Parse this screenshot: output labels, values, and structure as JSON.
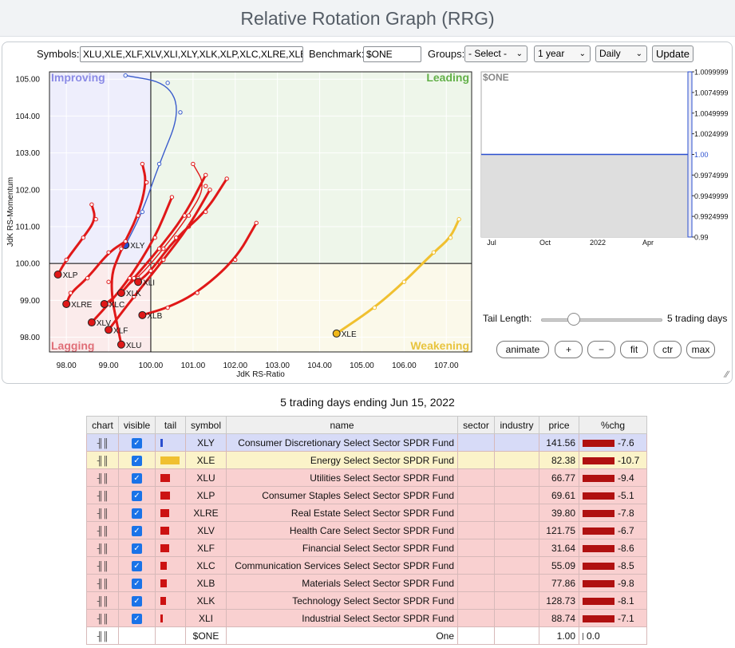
{
  "page_title": "Relative Rotation Graph (RRG)",
  "controls": {
    "symbols_label": "Symbols:",
    "symbols_value": "XLU,XLE,XLF,XLV,XLI,XLY,XLK,XLP,XLC,XLRE,XLB",
    "benchmark_label": "Benchmark:",
    "benchmark_value": "$ONE",
    "groups_label": "Groups:",
    "groups_selected": "- Select -",
    "period_selected": "1 year",
    "frequency_selected": "Daily",
    "update_label": "Update"
  },
  "quadrants": {
    "improving": "Improving",
    "leading": "Leading",
    "lagging": "Lagging",
    "weakening": "Weakening",
    "colors": {
      "improving_bg": "#eeeefc",
      "improving_text": "#8a8ae6",
      "leading_bg": "#eef6ea",
      "leading_text": "#62b048",
      "lagging_bg": "#fbebeb",
      "lagging_text": "#e06f78",
      "weakening_bg": "#fbf9ea",
      "weakening_text": "#e8c43e"
    }
  },
  "chart_data": [
    {
      "type": "scatter",
      "xlabel": "JdK RS-Ratio",
      "ylabel": "JdK RS-Momentum",
      "xlim": [
        97.6,
        107.6
      ],
      "ylim": [
        97.6,
        105.2
      ],
      "x_ticks": [
        "98.00",
        "99.00",
        "100.00",
        "101.00",
        "102.00",
        "103.00",
        "104.00",
        "105.00",
        "106.00",
        "107.00"
      ],
      "y_ticks": [
        "98.00",
        "99.00",
        "100.00",
        "101.00",
        "102.00",
        "103.00",
        "104.00",
        "105.00"
      ],
      "center": [
        100,
        100
      ],
      "series": [
        {
          "name": "XLY",
          "color": "#3a5ccc",
          "head_color": "#2a4fcf",
          "thick": false,
          "points": [
            [
              99.4,
              105.1
            ],
            [
              100.4,
              104.9
            ],
            [
              100.7,
              104.1
            ],
            [
              100.2,
              102.7
            ],
            [
              99.8,
              101.4
            ],
            [
              99.4,
              100.5
            ]
          ]
        },
        {
          "name": "XLE",
          "color": "#f0c030",
          "head_color": "#f0b818",
          "thick": true,
          "points": [
            [
              107.3,
              101.2
            ],
            [
              107.1,
              100.7
            ],
            [
              106.7,
              100.3
            ],
            [
              106.0,
              99.5
            ],
            [
              105.3,
              98.8
            ],
            [
              104.4,
              98.1
            ]
          ]
        },
        {
          "name": "XLU",
          "color": "#e01818",
          "head_color": "#e01818",
          "thick": true,
          "points": [
            [
              99.8,
              102.7
            ],
            [
              99.9,
              102.2
            ],
            [
              99.7,
              101.3
            ],
            [
              99.3,
              100.4
            ],
            [
              99.0,
              99.5
            ],
            [
              99.3,
              97.8
            ]
          ]
        },
        {
          "name": "XLP",
          "color": "#e01818",
          "head_color": "#e01818",
          "thick": true,
          "points": [
            [
              98.6,
              101.6
            ],
            [
              98.7,
              101.2
            ],
            [
              98.4,
              100.7
            ],
            [
              98.0,
              100.1
            ],
            [
              97.8,
              99.7
            ]
          ]
        },
        {
          "name": "XLRE",
          "color": "#e01818",
          "head_color": "#e01818",
          "thick": true,
          "points": [
            [
              99.4,
              100.6
            ],
            [
              99.0,
              100.3
            ],
            [
              98.5,
              99.6
            ],
            [
              98.1,
              99.2
            ],
            [
              98.0,
              98.9
            ]
          ]
        },
        {
          "name": "XLV",
          "color": "#e01818",
          "head_color": "#e01818",
          "thick": true,
          "points": [
            [
              100.5,
              101.8
            ],
            [
              100.1,
              100.7
            ],
            [
              99.5,
              99.6
            ],
            [
              99.0,
              98.9
            ],
            [
              98.6,
              98.4
            ]
          ]
        },
        {
          "name": "XLF",
          "color": "#e01818",
          "head_color": "#e01818",
          "thick": true,
          "points": [
            [
              101.4,
              102.0
            ],
            [
              100.9,
              101.0
            ],
            [
              100.3,
              100.1
            ],
            [
              99.6,
              99.1
            ],
            [
              99.0,
              98.2
            ]
          ]
        },
        {
          "name": "XLC",
          "color": "#e01818",
          "head_color": "#e01818",
          "thick": false,
          "points": [
            [
              101.0,
              102.7
            ],
            [
              101.3,
              102.1
            ],
            [
              100.9,
              101.3
            ],
            [
              100.3,
              100.4
            ],
            [
              99.7,
              99.6
            ],
            [
              98.9,
              98.9
            ]
          ]
        },
        {
          "name": "XLB",
          "color": "#e01818",
          "head_color": "#e01818",
          "thick": true,
          "points": [
            [
              102.5,
              101.1
            ],
            [
              102.0,
              100.1
            ],
            [
              101.1,
              99.2
            ],
            [
              100.4,
              98.8
            ],
            [
              99.8,
              98.6
            ]
          ]
        },
        {
          "name": "XLK",
          "color": "#e01818",
          "head_color": "#e01818",
          "thick": true,
          "points": [
            [
              101.3,
              102.4
            ],
            [
              100.8,
              101.3
            ],
            [
              100.2,
              100.4
            ],
            [
              99.6,
              99.6
            ],
            [
              99.3,
              99.2
            ]
          ]
        },
        {
          "name": "XLI",
          "color": "#e01818",
          "head_color": "#e01818",
          "thick": true,
          "points": [
            [
              101.8,
              102.3
            ],
            [
              101.3,
              101.4
            ],
            [
              100.6,
              100.7
            ],
            [
              100.0,
              99.8
            ],
            [
              99.7,
              99.5
            ]
          ]
        }
      ]
    },
    {
      "type": "area",
      "title": "$ONE",
      "x_ticks": [
        "Jul",
        "Oct",
        "2022",
        "Apr"
      ],
      "y_ticks": [
        "1.0099999",
        "1.0074999",
        "1.0049999",
        "1.0024999",
        "1.00",
        "0.9974999",
        "0.9949999",
        "0.9924999",
        "0.99"
      ],
      "ylim": [
        0.99,
        1.01
      ],
      "values": [
        1.0
      ],
      "line_color": "#2a4fcf",
      "fill_color": "#dedede"
    }
  ],
  "tail_control": {
    "label": "Tail Length:",
    "value": 5,
    "max": 30,
    "suffix": "5 trading days"
  },
  "buttons": {
    "animate": "animate",
    "plus": "+",
    "minus": "−",
    "fit": "fit",
    "ctr": "ctr",
    "max": "max"
  },
  "table": {
    "subtitle": "5 trading days ending Jun 15, 2022",
    "headers": [
      "chart",
      "visible",
      "tail",
      "symbol",
      "name",
      "sector",
      "industry",
      "price",
      "%chg"
    ],
    "rows": [
      {
        "symbol": "XLY",
        "name": "Consumer Discretionary Select Sector SPDR Fund",
        "price": "141.56",
        "chg": "-7.6",
        "bg": "#d7dbf7",
        "tail_color": "#2a4fcf",
        "tail_w": 3,
        "chg_w": 40
      },
      {
        "symbol": "XLE",
        "name": "Energy Select Sector SPDR Fund",
        "price": "82.38",
        "chg": "-10.7",
        "bg": "#fbf3c9",
        "tail_color": "#f0c030",
        "tail_w": 24,
        "chg_w": 40
      },
      {
        "symbol": "XLU",
        "name": "Utilities Select Sector SPDR Fund",
        "price": "66.77",
        "chg": "-9.4",
        "bg": "#f9d0d0",
        "tail_color": "#cc1212",
        "tail_w": 12,
        "chg_w": 40
      },
      {
        "symbol": "XLP",
        "name": "Consumer Staples Select Sector SPDR Fund",
        "price": "69.61",
        "chg": "-5.1",
        "bg": "#f9d0d0",
        "tail_color": "#cc1212",
        "tail_w": 12,
        "chg_w": 40
      },
      {
        "symbol": "XLRE",
        "name": "Real Estate Select Sector SPDR Fund",
        "price": "39.80",
        "chg": "-7.8",
        "bg": "#f9d0d0",
        "tail_color": "#cc1212",
        "tail_w": 11,
        "chg_w": 40
      },
      {
        "symbol": "XLV",
        "name": "Health Care Select Sector SPDR Fund",
        "price": "121.75",
        "chg": "-6.7",
        "bg": "#f9d0d0",
        "tail_color": "#cc1212",
        "tail_w": 11,
        "chg_w": 40
      },
      {
        "symbol": "XLF",
        "name": "Financial Select Sector SPDR Fund",
        "price": "31.64",
        "chg": "-8.6",
        "bg": "#f9d0d0",
        "tail_color": "#cc1212",
        "tail_w": 11,
        "chg_w": 40
      },
      {
        "symbol": "XLC",
        "name": "Communication Services Select Sector SPDR Fund",
        "price": "55.09",
        "chg": "-8.5",
        "bg": "#f9d0d0",
        "tail_color": "#cc1212",
        "tail_w": 8,
        "chg_w": 40
      },
      {
        "symbol": "XLB",
        "name": "Materials Select Sector SPDR Fund",
        "price": "77.86",
        "chg": "-9.8",
        "bg": "#f9d0d0",
        "tail_color": "#cc1212",
        "tail_w": 8,
        "chg_w": 40
      },
      {
        "symbol": "XLK",
        "name": "Technology Select Sector SPDR Fund",
        "price": "128.73",
        "chg": "-8.1",
        "bg": "#f9d0d0",
        "tail_color": "#cc1212",
        "tail_w": 7,
        "chg_w": 40
      },
      {
        "symbol": "XLI",
        "name": "Industrial Select Sector SPDR Fund",
        "price": "88.74",
        "chg": "-7.1",
        "bg": "#f9d0d0",
        "tail_color": "#cc1212",
        "tail_w": 3,
        "chg_w": 40
      },
      {
        "symbol": "$ONE",
        "name": "One",
        "price": "1.00",
        "chg": "0.0",
        "bg": "#ffffff",
        "tail_color": "",
        "tail_w": 0,
        "chg_w": 1,
        "no_check": true
      }
    ]
  }
}
